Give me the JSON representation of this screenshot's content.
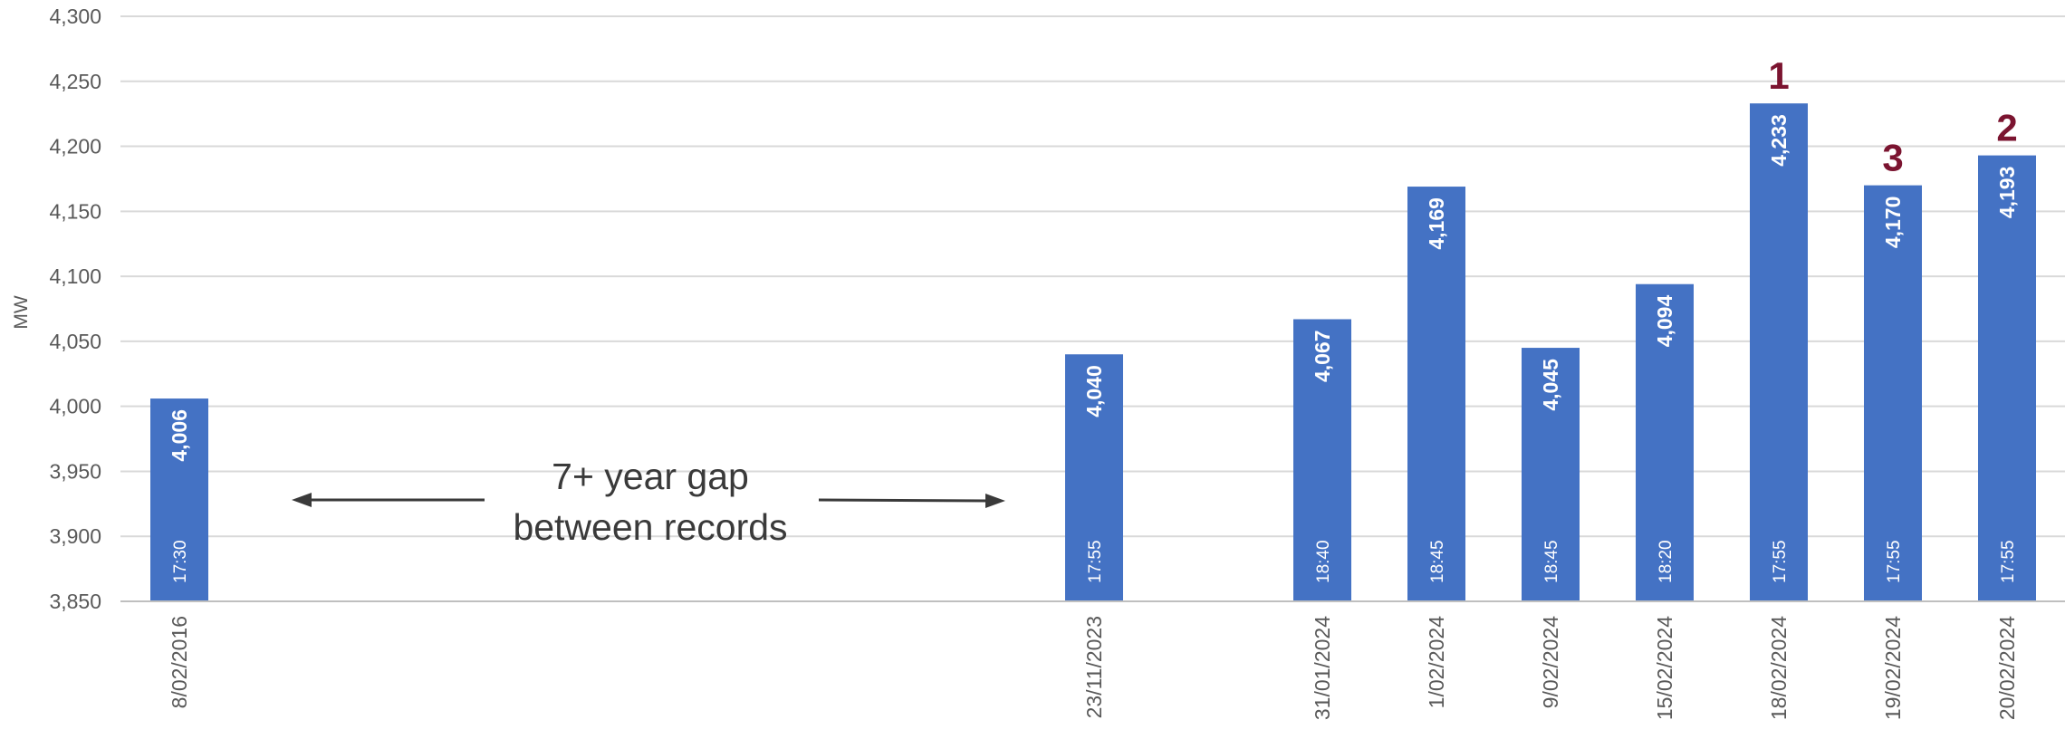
{
  "chart_data": {
    "type": "bar",
    "ylabel": "MW",
    "ylim": [
      3850,
      4300
    ],
    "yticks": [
      "3,850",
      "3,900",
      "3,950",
      "4,000",
      "4,050",
      "4,100",
      "4,150",
      "4,200",
      "4,250",
      "4,300"
    ],
    "grid": true,
    "bar_color": "#4472c4",
    "rank_color": "#7b1430",
    "categories": [
      "8/02/2016",
      "23/11/2023",
      "31/01/2024",
      "1/02/2024",
      "9/02/2024",
      "15/02/2024",
      "18/02/2024",
      "19/02/2024",
      "20/02/2024"
    ],
    "values": [
      4006,
      4040,
      4067,
      4169,
      4045,
      4094,
      4233,
      4170,
      4193
    ],
    "value_labels": [
      "4,006",
      "4,040",
      "4,067",
      "4,169",
      "4,045",
      "4,094",
      "4,233",
      "4,170",
      "4,193"
    ],
    "times": [
      "17:30",
      "17:55",
      "18:40",
      "18:45",
      "18:45",
      "18:20",
      "17:55",
      "17:55",
      "17:55"
    ],
    "ranks": [
      "",
      "",
      "",
      "",
      "",
      "",
      "1",
      "3",
      "2"
    ],
    "annotation": {
      "line1": "7+ year gap",
      "line2": "between records"
    }
  }
}
